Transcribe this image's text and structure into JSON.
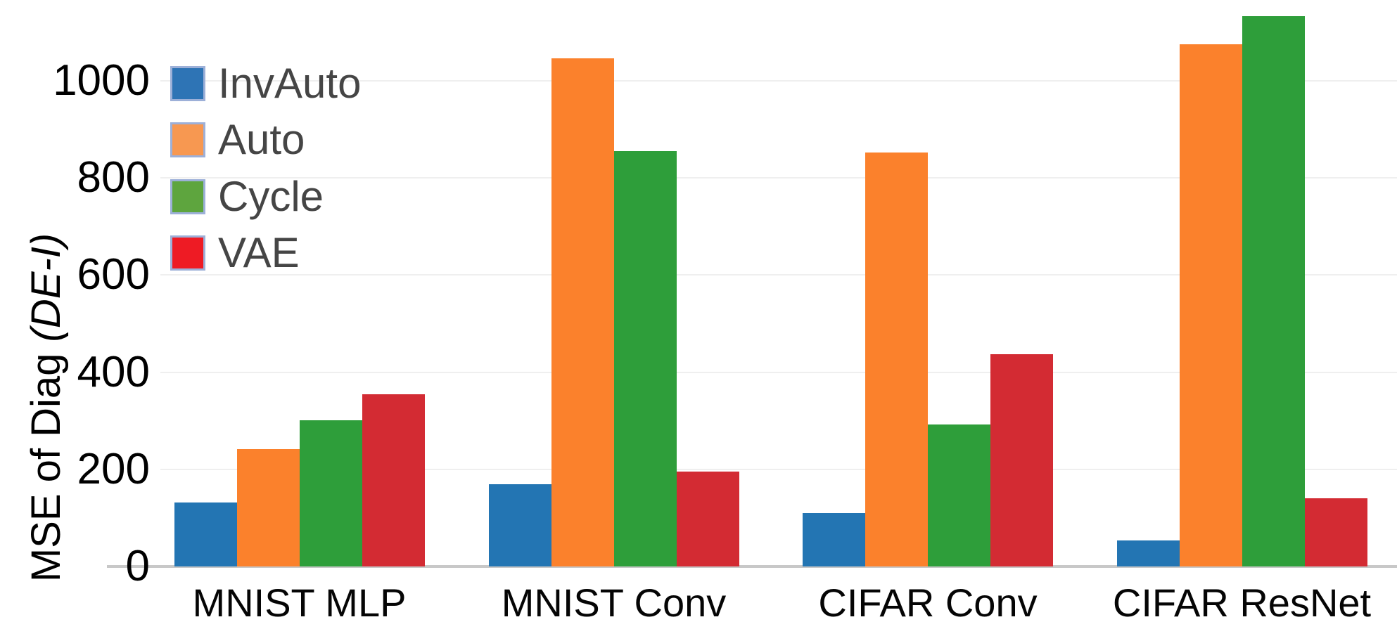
{
  "figure": {
    "ylabel_prefix": "MSE of Diag ",
    "ylabel_italic": "(DE-I)"
  },
  "chart_data": {
    "type": "bar",
    "categories": [
      "MNIST MLP",
      "MNIST Conv",
      "CIFAR Conv",
      "CIFAR ResNet"
    ],
    "series": [
      {
        "name": "InvAuto",
        "color": "#2375b3",
        "legend_color": "#2e74b5",
        "values": [
          132,
          170,
          110,
          53
        ]
      },
      {
        "name": "Auto",
        "color": "#fb812c",
        "legend_color": "#f79851",
        "values": [
          242,
          1047,
          853,
          1075
        ]
      },
      {
        "name": "Cycle",
        "color": "#2e9e3a",
        "legend_color": "#5ea53e",
        "values": [
          301,
          855,
          292,
          1133
        ]
      },
      {
        "name": "VAE",
        "color": "#d32b33",
        "legend_color": "#ee1b24",
        "values": [
          355,
          196,
          437,
          141
        ]
      }
    ],
    "ylabel": "MSE of Diag (DE-I)",
    "y_ticks": [
      0,
      200,
      400,
      600,
      800,
      1000
    ],
    "ylim": [
      0,
      1170
    ],
    "grid": true,
    "legend_position": "upper-left"
  },
  "styles": {
    "background": "#ffffff",
    "grid_color": "#efefef",
    "baseline_color": "#c8c8c8",
    "tick_text_color": "#000000",
    "xlabel_text_color": "#050505",
    "legend_text_color": "#454545",
    "swatch_border_color": "#9db0d8"
  }
}
